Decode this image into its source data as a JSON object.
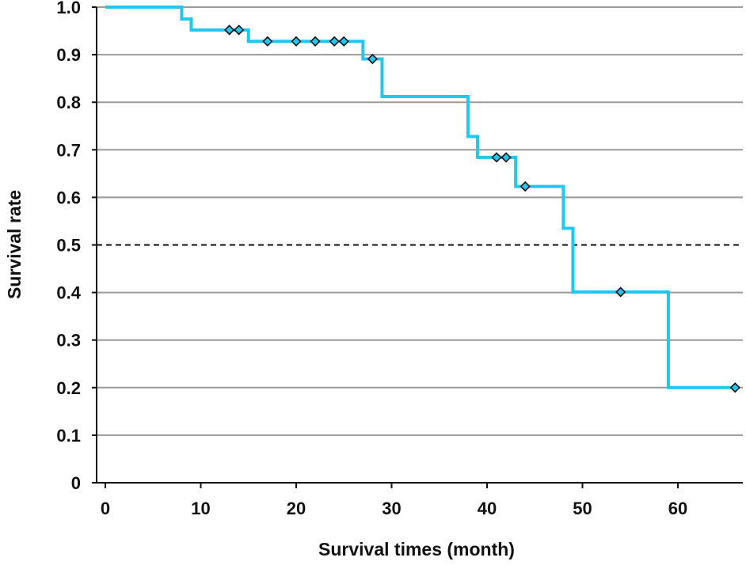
{
  "chart_data": {
    "type": "line",
    "title": "",
    "xlabel": "Survival times (month)",
    "ylabel": "Survival rate",
    "xlim": [
      0,
      66
    ],
    "ylim": [
      0,
      1.0
    ],
    "x_ticks": [
      0,
      10,
      20,
      30,
      40,
      50,
      60
    ],
    "x_tick_labels": [
      "0",
      "10",
      "20",
      "30",
      "40",
      "50",
      "60"
    ],
    "y_ticks": [
      0,
      0.1,
      0.2,
      0.3,
      0.4,
      0.5,
      0.6,
      0.7,
      0.8,
      0.9,
      1.0
    ],
    "y_tick_labels": [
      "0",
      "0.1",
      "0.2",
      "0.3",
      "0.4",
      "0.5",
      "0.6",
      "0.7",
      "0.8",
      "0.9",
      "1.0"
    ],
    "grid": "horizontal",
    "reference_line": {
      "y": 0.5,
      "style": "dashed",
      "color": "#111111"
    },
    "series": [
      {
        "style": "step",
        "color": "#1ec8f0",
        "x": [
          0,
          8,
          9,
          15,
          27,
          29,
          38,
          39,
          43,
          48,
          49,
          59,
          66
        ],
        "y": [
          1.0,
          0.975,
          0.952,
          0.928,
          0.891,
          0.812,
          0.728,
          0.684,
          0.623,
          0.535,
          0.401,
          0.2,
          0.2
        ]
      }
    ],
    "censored": {
      "marker": "diamond",
      "color": "#1ec8f0",
      "x": [
        13,
        14,
        17,
        20,
        22,
        24,
        25,
        28,
        41,
        42,
        44,
        54,
        66
      ],
      "y": [
        0.952,
        0.952,
        0.928,
        0.928,
        0.928,
        0.928,
        0.928,
        0.891,
        0.684,
        0.684,
        0.623,
        0.401,
        0.2
      ]
    },
    "colors": {
      "grid": "#999999",
      "axis": "#111111"
    }
  }
}
